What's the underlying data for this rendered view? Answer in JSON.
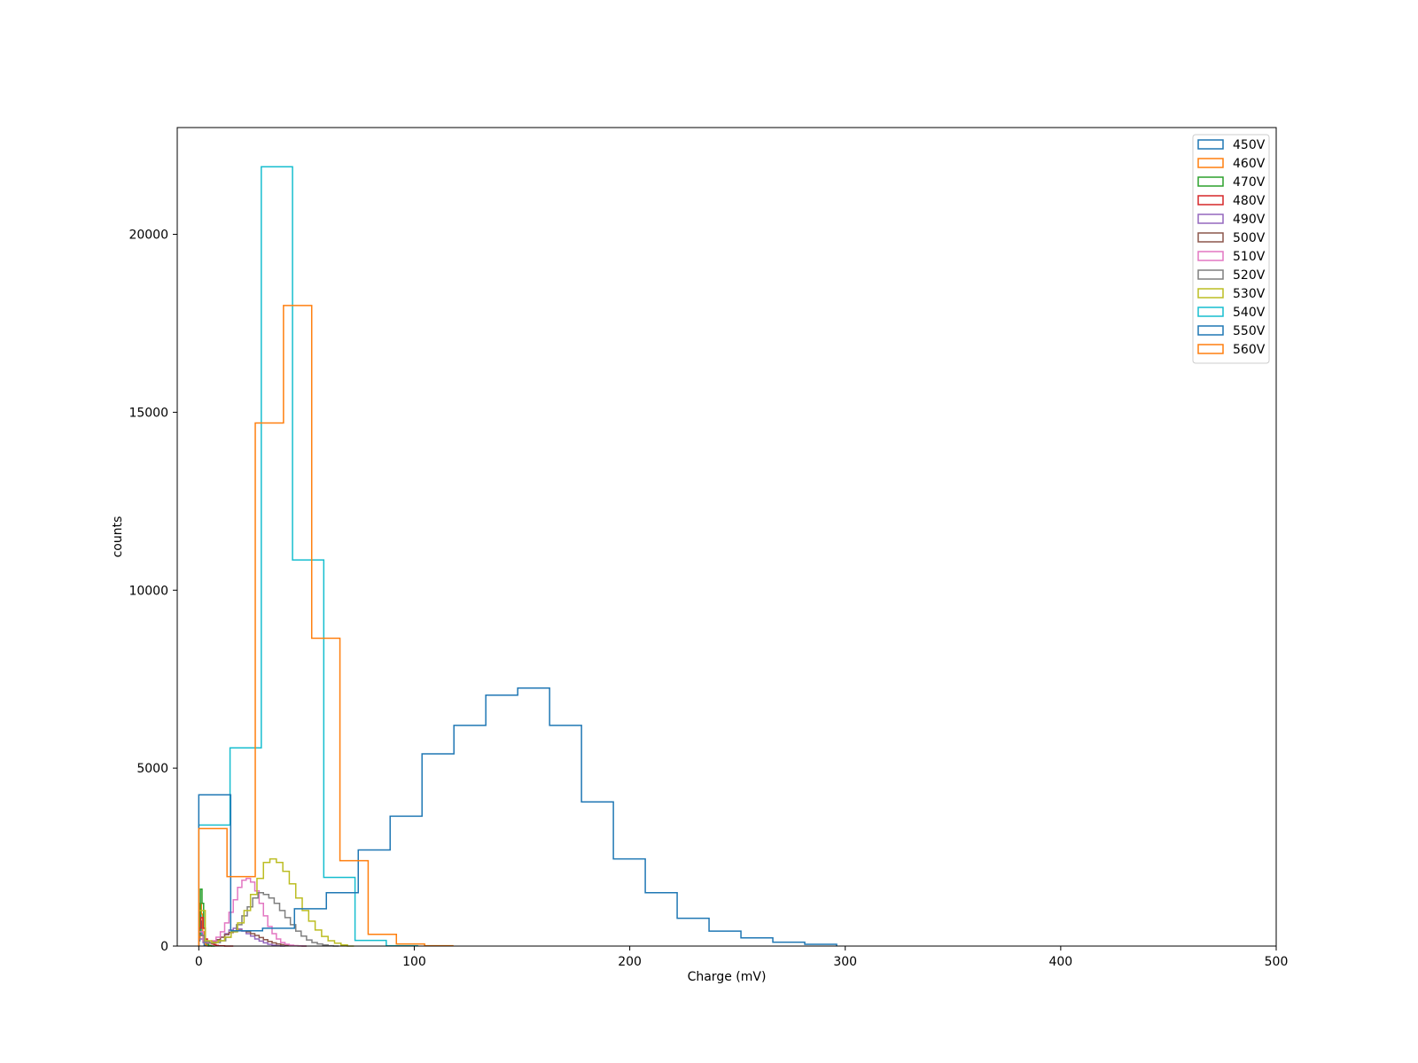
{
  "chart_data": {
    "type": "histogram",
    "xlabel": "Charge (mV)",
    "ylabel": "counts",
    "xlim": [
      -10,
      500
    ],
    "ylim": [
      0,
      23000
    ],
    "xticks": [
      0,
      100,
      200,
      300,
      400,
      500
    ],
    "yticks": [
      0,
      5000,
      10000,
      15000,
      20000
    ],
    "grid": false,
    "legend_position": "top-right",
    "series": [
      {
        "name": "450V",
        "color": "#1f77b4",
        "edges": [
          0,
          0.5,
          1,
          1.5,
          2,
          2.5,
          3,
          3.5,
          4,
          4.5,
          5
        ],
        "counts": [
          150,
          1000,
          700,
          300,
          100,
          30,
          10,
          5,
          2,
          0
        ]
      },
      {
        "name": "460V",
        "color": "#ff7f0e",
        "edges": [
          0,
          0.6,
          1.2,
          1.8,
          2.4,
          3,
          3.6,
          4.2,
          4.8,
          5.4,
          6
        ],
        "counts": [
          200,
          1200,
          900,
          400,
          150,
          50,
          15,
          5,
          2,
          0
        ]
      },
      {
        "name": "470V",
        "color": "#2ca02c",
        "edges": [
          0,
          0.75,
          1.5,
          2.25,
          3,
          3.75,
          4.5,
          5.25,
          6,
          6.75,
          7.5
        ],
        "counts": [
          300,
          1600,
          1200,
          500,
          180,
          60,
          20,
          5,
          0,
          0
        ]
      },
      {
        "name": "480V",
        "color": "#d62728",
        "edges": [
          0,
          1,
          2,
          3,
          4,
          5,
          6,
          7,
          8,
          9,
          10,
          12,
          14,
          16
        ],
        "counts": [
          500,
          800,
          500,
          200,
          100,
          80,
          60,
          40,
          20,
          10,
          5,
          0,
          0
        ]
      },
      {
        "name": "490V",
        "color": "#9467bd",
        "edges": [
          0,
          2,
          4,
          6,
          8,
          10,
          12,
          14,
          16,
          18,
          20,
          22,
          24,
          26,
          28,
          30,
          32,
          34,
          36,
          38,
          40
        ],
        "counts": [
          200,
          100,
          80,
          90,
          150,
          250,
          350,
          450,
          500,
          480,
          420,
          350,
          280,
          200,
          140,
          90,
          50,
          25,
          10,
          0
        ]
      },
      {
        "name": "500V",
        "color": "#8c564b",
        "edges": [
          0,
          2,
          4,
          6,
          8,
          10,
          12,
          14,
          16,
          18,
          20,
          22,
          24,
          26,
          28,
          30,
          32,
          34,
          36,
          38,
          40,
          42,
          44,
          46,
          48,
          50
        ],
        "counts": [
          300,
          150,
          100,
          120,
          180,
          250,
          320,
          380,
          420,
          440,
          430,
          400,
          350,
          300,
          240,
          180,
          130,
          90,
          60,
          40,
          25,
          15,
          8,
          3,
          0
        ]
      },
      {
        "name": "510V",
        "color": "#e377c2",
        "edges": [
          0,
          2,
          4,
          6,
          8,
          10,
          12,
          14,
          16,
          18,
          20,
          22,
          24,
          26,
          28,
          30,
          32,
          34,
          36,
          38,
          40,
          42,
          44,
          46,
          48,
          50
        ],
        "counts": [
          400,
          150,
          100,
          150,
          250,
          400,
          650,
          950,
          1300,
          1650,
          1850,
          1900,
          1800,
          1550,
          1200,
          850,
          550,
          350,
          200,
          100,
          50,
          25,
          10,
          5,
          0
        ]
      },
      {
        "name": "520V",
        "color": "#7f7f7f",
        "edges": [
          0,
          2.5,
          5,
          7.5,
          10,
          12.5,
          15,
          17.5,
          20,
          22.5,
          25,
          27.5,
          30,
          32.5,
          35,
          37.5,
          40,
          42.5,
          45,
          47.5,
          50,
          52.5,
          55,
          57.5,
          60,
          62.5,
          65
        ],
        "counts": [
          300,
          120,
          80,
          100,
          150,
          250,
          400,
          600,
          850,
          1100,
          1350,
          1500,
          1450,
          1350,
          1200,
          1000,
          800,
          600,
          420,
          280,
          170,
          100,
          60,
          30,
          10,
          0
        ]
      },
      {
        "name": "530V",
        "color": "#bcbd22",
        "edges": [
          0,
          3,
          6,
          9,
          12,
          15,
          18,
          21,
          24,
          27,
          30,
          33,
          36,
          39,
          42,
          45,
          48,
          51,
          54,
          57,
          60,
          63,
          66,
          69,
          72
        ],
        "counts": [
          1000,
          150,
          100,
          150,
          250,
          400,
          650,
          1000,
          1450,
          1900,
          2350,
          2450,
          2350,
          2100,
          1750,
          1350,
          1000,
          700,
          450,
          270,
          150,
          80,
          30,
          0
        ]
      },
      {
        "name": "540V",
        "color": "#17becf",
        "edges": [
          0,
          14.5,
          29,
          43.5,
          58,
          72.5,
          87,
          101.5
        ],
        "counts": [
          3400,
          5570,
          21900,
          10850,
          1930,
          160,
          10
        ]
      },
      {
        "name": "550V",
        "color": "#1f77b4",
        "edges": [
          0,
          14.8,
          29.6,
          44.4,
          59.2,
          74,
          88.8,
          103.6,
          118.4,
          133.2,
          148,
          162.8,
          177.6,
          192.4,
          207.2,
          222,
          236.8,
          251.6,
          266.4,
          281.2,
          296
        ],
        "counts": [
          4250,
          430,
          500,
          1050,
          1500,
          2700,
          3650,
          5400,
          6200,
          7050,
          7250,
          6200,
          4050,
          2450,
          1500,
          780,
          420,
          230,
          110,
          50
        ]
      },
      {
        "name": "560V",
        "color": "#ff7f0e",
        "edges": [
          0,
          13.1,
          26.2,
          39.3,
          52.4,
          65.5,
          78.6,
          91.7,
          104.8,
          117.9
        ],
        "counts": [
          3300,
          1950,
          14700,
          18000,
          8650,
          2400,
          330,
          60,
          10
        ]
      }
    ]
  }
}
